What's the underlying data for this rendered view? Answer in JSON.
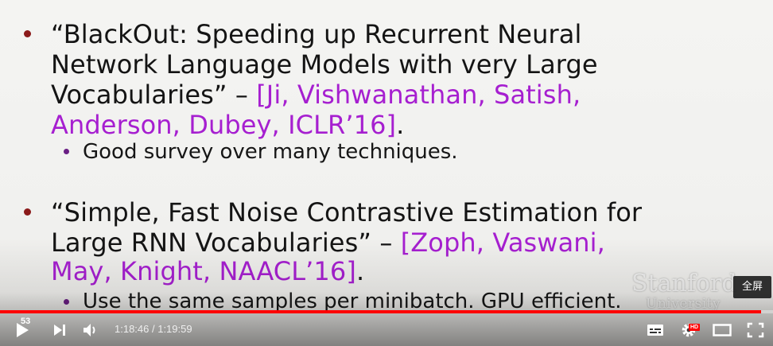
{
  "slide": {
    "item1": {
      "lines": [
        "“BlackOut: Speeding up Recurrent Neural",
        "Network Language Models with very Large"
      ],
      "line3_text": "Vocabularies” – ",
      "line3_cite": "[Ji, Vishwanathan, Satish,",
      "line4_cite": "Anderson, Dubey, ICLR’16]",
      "line4_end": ".",
      "sub": "Good survey over many techniques."
    },
    "item2": {
      "line1": "“Simple, Fast Noise Contrastive Estimation for",
      "line2_text": "Large RNN Vocabularies” – ",
      "line2_cite": "[Zoph, Vaswani,",
      "line3_cite": "May, Knight, NAACL’16]",
      "line3_end": ".",
      "sub": "Use the same samples per minibatch. GPU efficient."
    },
    "logo_line1": "Stanford",
    "logo_line2": "University"
  },
  "player": {
    "badge": "53",
    "time_current": "1:18:46",
    "time_separator": " / ",
    "time_total": "1:19:59",
    "progress_fraction": 0.985,
    "fullscreen_tooltip": "全屏",
    "hd_label": "HD",
    "icons": {
      "play": "play-icon",
      "next": "next-icon",
      "volume": "volume-icon",
      "subtitles": "subtitles-icon",
      "settings": "gear-icon",
      "theater": "theater-icon",
      "fullscreen": "fullscreen-icon"
    },
    "accent_color": "#ff0000"
  }
}
